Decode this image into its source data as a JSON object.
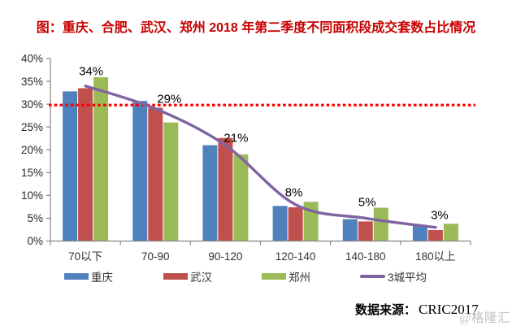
{
  "chart_data": {
    "type": "bar",
    "title": "图：重庆、合肥、武汉、郑州 2018 年第二季度不同面积段成交套数占比情况",
    "categories": [
      "70以下",
      "70-90",
      "90-120",
      "120-140",
      "140-180",
      "180以上"
    ],
    "series": [
      {
        "name": "重庆",
        "type": "bar",
        "color": "#4F81BD",
        "values": [
          32.8,
          30.7,
          21.0,
          7.7,
          4.8,
          3.3
        ]
      },
      {
        "name": "武汉",
        "type": "bar",
        "color": "#C0504D",
        "values": [
          33.5,
          29.2,
          22.6,
          7.4,
          4.3,
          2.4
        ]
      },
      {
        "name": "郑州",
        "type": "bar",
        "color": "#9BBB59",
        "values": [
          35.9,
          26.0,
          19.0,
          8.6,
          7.3,
          3.8
        ]
      },
      {
        "name": "3城平均",
        "type": "line",
        "color": "#8064A2",
        "values": [
          34,
          29,
          21,
          8,
          5,
          3
        ],
        "data_labels": [
          "34%",
          "29%",
          "21%",
          "8%",
          "5%",
          "3%"
        ]
      }
    ],
    "reference_line": {
      "value": 29.8,
      "color": "#FF0000",
      "style": "dotted"
    },
    "y_axis": {
      "min": 0,
      "max": 40,
      "step": 5,
      "tick_labels": [
        "0%",
        "5%",
        "10%",
        "15%",
        "20%",
        "25%",
        "30%",
        "35%",
        "40%"
      ]
    },
    "gridlines": false,
    "legend_position": "bottom",
    "axis_color": "#878787",
    "label_color": "#262626"
  },
  "source_note": {
    "label": "数据来源：",
    "value": "CRIC2017"
  },
  "watermark": "@格隆汇"
}
